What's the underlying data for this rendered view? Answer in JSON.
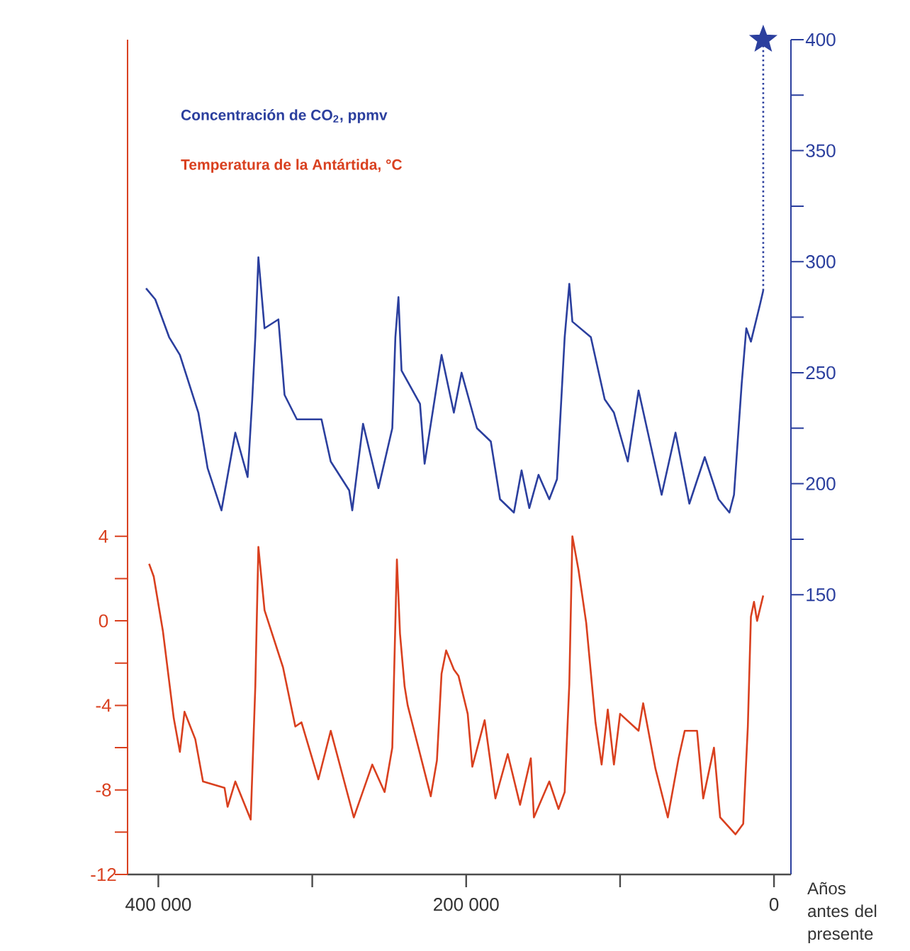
{
  "chart_data": {
    "type": "line",
    "xlabel": "Años antes del presente",
    "xlim": [
      420000,
      -11000
    ],
    "xticks": [
      {
        "value": 400000,
        "label": "400 000"
      },
      {
        "value": 300000,
        "label": null
      },
      {
        "value": 200000,
        "label": "200 000"
      },
      {
        "value": 100000,
        "label": null
      },
      0
    ],
    "ylim": [
      -12,
      27.5
    ],
    "yticks": [
      -12,
      {
        "value": -10,
        "label": null
      },
      -8,
      {
        "value": -6,
        "label": null
      },
      -4,
      {
        "value": -2,
        "label": null
      },
      0,
      {
        "value": 2,
        "label": null
      },
      4
    ],
    "y2lim": [
      24,
      400
    ],
    "y2ticks": [
      150,
      {
        "value": 175,
        "label": null
      },
      200,
      {
        "value": 225,
        "label": null
      },
      250,
      {
        "value": 275,
        "label": null
      },
      300,
      {
        "value": 325,
        "label": null
      },
      350,
      {
        "value": 375,
        "label": null
      },
      400
    ],
    "series": [
      {
        "name": "Concentración de CO$_{2}$, ppmv",
        "color": "#2b3f9e",
        "axis": "y2",
        "x": [
          408000,
          402000,
          393000,
          386000,
          374000,
          368000,
          359000,
          350000,
          342000,
          339000,
          337000,
          335000,
          331000,
          322000,
          318000,
          310000,
          294000,
          288000,
          276000,
          274000,
          267000,
          257000,
          248000,
          246000,
          244000,
          242000,
          230000,
          227000,
          216000,
          208000,
          203000,
          193000,
          184000,
          178000,
          169000,
          164000,
          159000,
          153000,
          146000,
          141000,
          136000,
          133000,
          131000,
          119000,
          110000,
          104000,
          95000,
          88000,
          73000,
          64000,
          55000,
          45000,
          36000,
          29000,
          26000,
          21000,
          18000,
          15000,
          9000,
          7000
        ],
        "values": [
          288,
          283,
          266,
          258,
          232,
          207,
          188,
          223,
          203,
          238,
          266,
          302,
          270,
          274,
          240,
          229,
          229,
          210,
          197,
          188,
          227,
          198,
          225,
          266,
          284,
          251,
          236,
          209,
          258,
          232,
          250,
          225,
          219,
          193,
          187,
          206,
          189,
          204,
          193,
          202,
          266,
          290,
          273,
          266,
          238,
          232,
          210,
          242,
          195,
          223,
          191,
          212,
          193,
          187,
          195,
          245,
          270,
          264,
          281,
          287
        ]
      },
      {
        "name": "Temperatura de la Antártida, °C",
        "color": "#d9401f",
        "axis": "y",
        "x": [
          406000,
          403000,
          397000,
          390000,
          386000,
          383000,
          376000,
          371000,
          357000,
          355000,
          350000,
          340000,
          337000,
          335000,
          331000,
          319000,
          311000,
          307000,
          296000,
          288000,
          273000,
          261000,
          253000,
          248000,
          245000,
          243000,
          240000,
          238000,
          223000,
          219000,
          216000,
          213000,
          208000,
          205000,
          199000,
          196000,
          188000,
          181000,
          173000,
          165000,
          158000,
          156000,
          146000,
          140000,
          136000,
          133000,
          131000,
          127000,
          122000,
          116000,
          112000,
          108000,
          104000,
          100000,
          88000,
          85000,
          77000,
          69000,
          62000,
          58000,
          50000,
          46000,
          39000,
          35000,
          25000,
          20000,
          17000,
          15000,
          13000,
          11000,
          7000
        ],
        "values": [
          2.7,
          2.1,
          -0.5,
          -4.6,
          -6.2,
          -4.3,
          -5.6,
          -7.6,
          -7.9,
          -8.8,
          -7.6,
          -9.4,
          -3.1,
          3.5,
          0.5,
          -2.2,
          -5,
          -4.8,
          -7.5,
          -5.2,
          -9.3,
          -6.8,
          -8.1,
          -6.0,
          2.9,
          -0.6,
          -3.1,
          -4,
          -8.3,
          -6.6,
          -2.5,
          -1.4,
          -2.3,
          -2.6,
          -4.4,
          -6.9,
          -4.7,
          -8.4,
          -6.3,
          -8.7,
          -6.5,
          -9.3,
          -7.6,
          -8.9,
          -8.1,
          -3,
          4,
          2.4,
          -0.1,
          -4.8,
          -6.8,
          -4.2,
          -6.8,
          -4.4,
          -5.2,
          -3.9,
          -7,
          -9.3,
          -6.5,
          -5.2,
          -5.2,
          -8.4,
          -6,
          -9.3,
          -10.1,
          -9.6,
          -5,
          0.2,
          0.9,
          0,
          1.2
        ]
      },
      {
        "color": "#2b3f9e",
        "axis": "y2",
        "line_style": "dotted",
        "x": [
          7000,
          7000
        ],
        "values": [
          287,
          400
        ]
      },
      {
        "type": "scatter",
        "color": "#2b3f9e",
        "axis": "y2",
        "marker": "star",
        "x": [
          7000
        ],
        "values": [
          400
        ]
      }
    ]
  }
}
